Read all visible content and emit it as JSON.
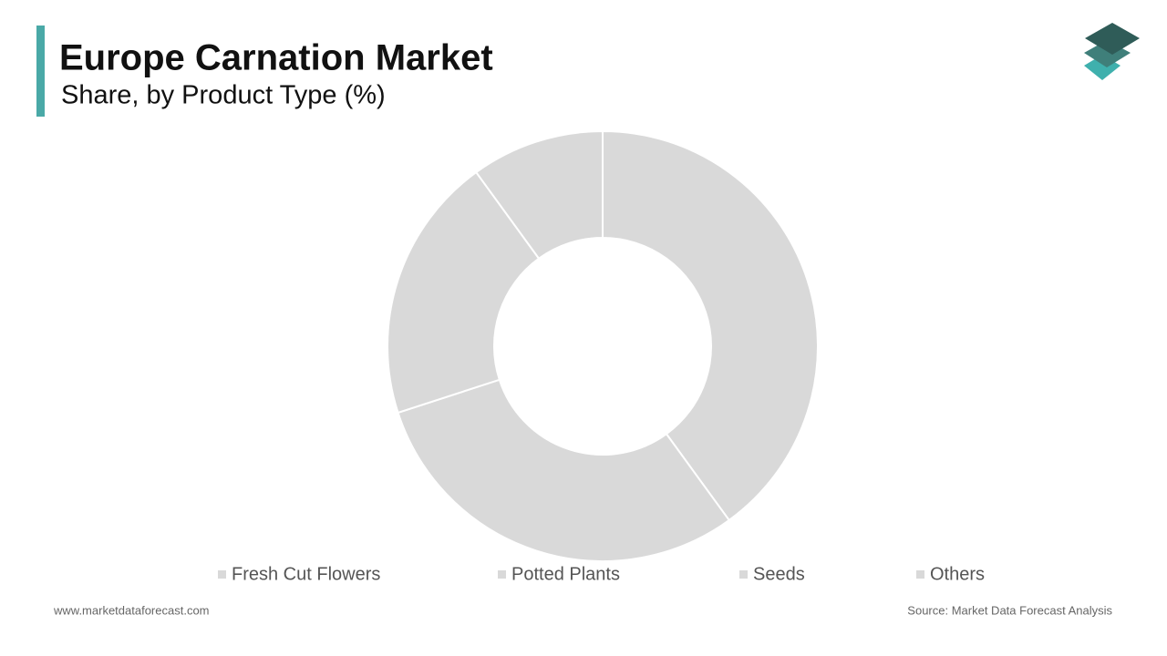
{
  "chart_data": {
    "type": "donut",
    "title": "Europe Carnation Market",
    "subtitle": "Share, by Product Type (%)",
    "categories": [
      "Fresh Cut Flowers",
      "Potted Plants",
      "Seeds",
      "Others"
    ],
    "values": [
      40,
      30,
      20,
      10
    ],
    "colors": [
      "#d9d9d9",
      "#d9d9d9",
      "#d9d9d9",
      "#d9d9d9"
    ],
    "legend": "bottom"
  },
  "footer": {
    "website": "www.marketdataforecast.com",
    "source": "Source: Market Data Forecast Analysis"
  }
}
